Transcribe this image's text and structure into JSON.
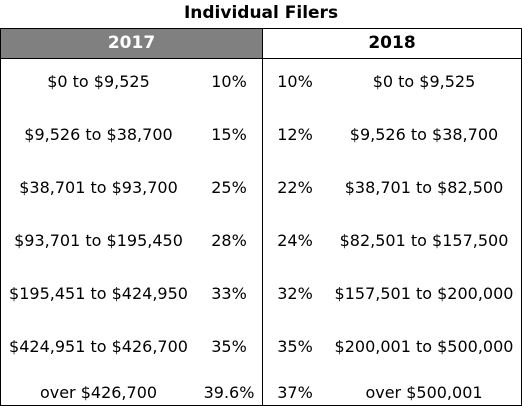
{
  "title": "Individual Filers",
  "headers": {
    "left": "2017",
    "right": "2018"
  },
  "rows": [
    {
      "range_2017": "$0 to $9,525",
      "rate_2017": "10%",
      "rate_2018": "10%",
      "range_2018": "$0 to $9,525"
    },
    {
      "range_2017": "$9,526 to $38,700",
      "rate_2017": "15%",
      "rate_2018": "12%",
      "range_2018": "$9,526 to $38,700"
    },
    {
      "range_2017": "$38,701 to $93,700",
      "rate_2017": "25%",
      "rate_2018": "22%",
      "range_2018": "$38,701 to $82,500"
    },
    {
      "range_2017": "$93,701 to $195,450",
      "rate_2017": "28%",
      "rate_2018": "24%",
      "range_2018": "$82,501 to $157,500"
    },
    {
      "range_2017": "$195,451 to $424,950",
      "rate_2017": "33%",
      "rate_2018": "32%",
      "range_2018": "$157,501 to $200,000"
    },
    {
      "range_2017": "$424,951 to $426,700",
      "rate_2017": "35%",
      "rate_2018": "35%",
      "range_2018": "$200,001 to $500,000"
    },
    {
      "range_2017": "over $426,700",
      "rate_2017": "39.6%",
      "rate_2018": "37%",
      "range_2018": "over $500,001"
    }
  ]
}
